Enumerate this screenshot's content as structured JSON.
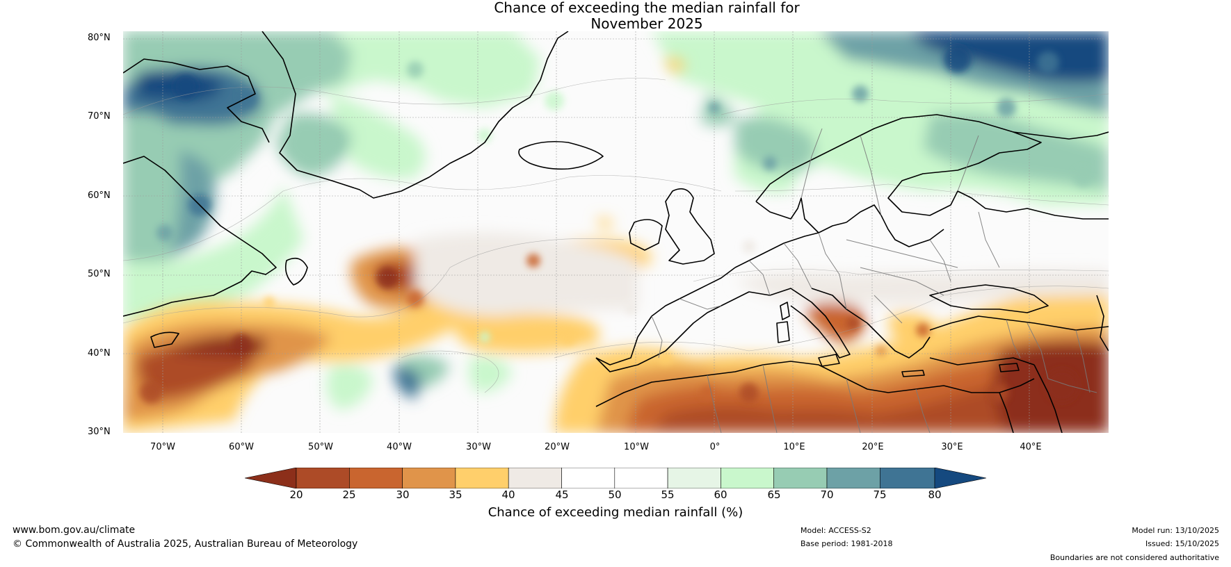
{
  "title": {
    "line1": "Chance of exceeding the median rainfall for",
    "line2": "November 2025"
  },
  "map": {
    "latitude_labels": [
      "80°N",
      "70°N",
      "60°N",
      "50°N",
      "40°N",
      "30°N"
    ],
    "longitude_labels": [
      "70°W",
      "60°W",
      "50°W",
      "40°W",
      "30°W",
      "20°W",
      "10°W",
      "0°",
      "10°E",
      "20°E",
      "30°E",
      "40°E"
    ],
    "lon_range": [
      -75,
      50
    ],
    "lat_range": [
      30,
      81
    ],
    "dry_regions": [
      {
        "lon": -66,
        "lat": 37,
        "category": "20-25"
      },
      {
        "lon": -40,
        "lat": 46,
        "category": "20-25"
      },
      {
        "lon": 38,
        "lat": 35,
        "category": "20-25"
      },
      {
        "lon": 20,
        "lat": 36,
        "category": "25-30"
      },
      {
        "lon": 0,
        "lat": 33,
        "category": "25-30"
      }
    ],
    "wet_regions": [
      {
        "lon": -64,
        "lat": 73,
        "category": "75-80"
      },
      {
        "lon": 30,
        "lat": 79,
        "category": "75-80"
      },
      {
        "lon": -67,
        "lat": 56,
        "category": "70-75"
      },
      {
        "lon": 5,
        "lat": 64,
        "category": "65-70"
      }
    ]
  },
  "colorbar": {
    "ticks": [
      "20",
      "25",
      "30",
      "35",
      "40",
      "45",
      "50",
      "55",
      "60",
      "65",
      "70",
      "75",
      "80"
    ],
    "colors": [
      "#8c2f1a",
      "#ad4b27",
      "#c9652f",
      "#e0944a",
      "#ffcf6b",
      "#efeae5",
      "#ffffff",
      "#ffffff",
      "#e6f5e6",
      "#c9f7cc",
      "#97ccb3",
      "#6da1a6",
      "#3f7494",
      "#15497f"
    ],
    "label": "Chance of exceeding median rainfall (%)"
  },
  "footer": {
    "website": "www.bom.gov.au/climate",
    "copyright": "© Commonwealth of Australia 2025, Australian Bureau of Meteorology",
    "model": "Model: ACCESS-S2",
    "base_period": "Base period: 1981-2018",
    "model_run": "Model run: 13/10/2025",
    "issued": "Issued: 15/10/2025",
    "disclaimer": "Boundaries are not considered authoritative"
  }
}
